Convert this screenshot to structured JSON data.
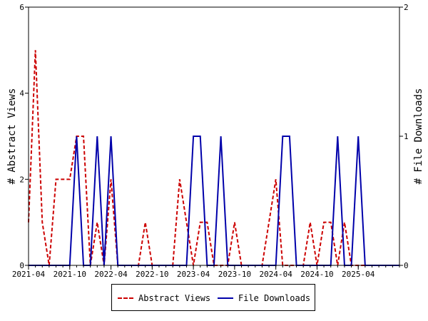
{
  "chart_data": {
    "type": "line",
    "x_start": "2021-04",
    "x_end": "2025-10",
    "x_tick_labels": [
      "2021-04",
      "2021-10",
      "2022-04",
      "2022-10",
      "2023-04",
      "2023-10",
      "2024-04",
      "2024-10",
      "2025-04"
    ],
    "ylabel_left": "# Abstract Views",
    "ylabel_right": "# File Downloads",
    "ylim_left": [
      0,
      6
    ],
    "ylim_right": [
      0,
      2
    ],
    "yticks_left": [
      "0",
      "2",
      "4",
      "6"
    ],
    "yticks_right": [
      "0",
      "1",
      "2"
    ],
    "grid": false,
    "legend_position": "bottom",
    "series": [
      {
        "name": "Abstract Views",
        "axis": "left",
        "color": "#cc0000",
        "style": "dashed",
        "x": [
          "2021-04",
          "2021-05",
          "2021-06",
          "2021-07",
          "2021-08",
          "2021-09",
          "2021-10",
          "2021-11",
          "2021-12",
          "2022-01",
          "2022-02",
          "2022-03",
          "2022-04",
          "2022-05",
          "2022-06",
          "2022-07",
          "2022-08",
          "2022-09",
          "2022-10",
          "2022-11",
          "2022-12",
          "2023-01",
          "2023-02",
          "2023-03",
          "2023-04",
          "2023-05",
          "2023-06",
          "2023-07",
          "2023-08",
          "2023-09",
          "2023-10",
          "2023-11",
          "2023-12",
          "2024-01",
          "2024-02",
          "2024-03",
          "2024-04",
          "2024-05",
          "2024-06",
          "2024-07",
          "2024-08",
          "2024-09",
          "2024-10",
          "2024-11",
          "2024-12",
          "2025-01",
          "2025-02",
          "2025-03",
          "2025-04",
          "2025-05",
          "2025-06",
          "2025-07",
          "2025-08",
          "2025-09",
          "2025-10"
        ],
        "values": [
          1,
          5,
          1,
          0,
          2,
          2,
          2,
          3,
          3,
          0,
          1,
          0,
          2,
          0,
          0,
          0,
          0,
          1,
          0,
          0,
          0,
          0,
          2,
          1,
          0,
          1,
          1,
          0,
          0,
          0,
          1,
          0,
          0,
          0,
          0,
          1,
          2,
          0,
          0,
          0,
          0,
          1,
          0,
          1,
          1,
          0,
          1,
          0,
          0,
          0,
          0,
          0,
          0,
          0,
          0
        ]
      },
      {
        "name": "File Downloads",
        "axis": "right",
        "color": "#0000aa",
        "style": "solid",
        "x": [
          "2021-04",
          "2021-05",
          "2021-06",
          "2021-07",
          "2021-08",
          "2021-09",
          "2021-10",
          "2021-11",
          "2021-12",
          "2022-01",
          "2022-02",
          "2022-03",
          "2022-04",
          "2022-05",
          "2022-06",
          "2022-07",
          "2022-08",
          "2022-09",
          "2022-10",
          "2022-11",
          "2022-12",
          "2023-01",
          "2023-02",
          "2023-03",
          "2023-04",
          "2023-05",
          "2023-06",
          "2023-07",
          "2023-08",
          "2023-09",
          "2023-10",
          "2023-11",
          "2023-12",
          "2024-01",
          "2024-02",
          "2024-03",
          "2024-04",
          "2024-05",
          "2024-06",
          "2024-07",
          "2024-08",
          "2024-09",
          "2024-10",
          "2024-11",
          "2024-12",
          "2025-01",
          "2025-02",
          "2025-03",
          "2025-04",
          "2025-05",
          "2025-06",
          "2025-07",
          "2025-08",
          "2025-09",
          "2025-10"
        ],
        "values": [
          0,
          0,
          0,
          0,
          0,
          0,
          0,
          1,
          0,
          0,
          1,
          0,
          1,
          0,
          0,
          0,
          0,
          0,
          0,
          0,
          0,
          0,
          0,
          0,
          1,
          1,
          0,
          0,
          1,
          0,
          0,
          0,
          0,
          0,
          0,
          0,
          0,
          1,
          1,
          0,
          0,
          0,
          0,
          0,
          0,
          1,
          0,
          0,
          1,
          0,
          0,
          0,
          0,
          0,
          0
        ]
      }
    ]
  },
  "legend": {
    "items": [
      {
        "label": "Abstract Views",
        "color": "#cc0000",
        "style": "dashed"
      },
      {
        "label": "File Downloads",
        "color": "#0000aa",
        "style": "solid"
      }
    ]
  }
}
